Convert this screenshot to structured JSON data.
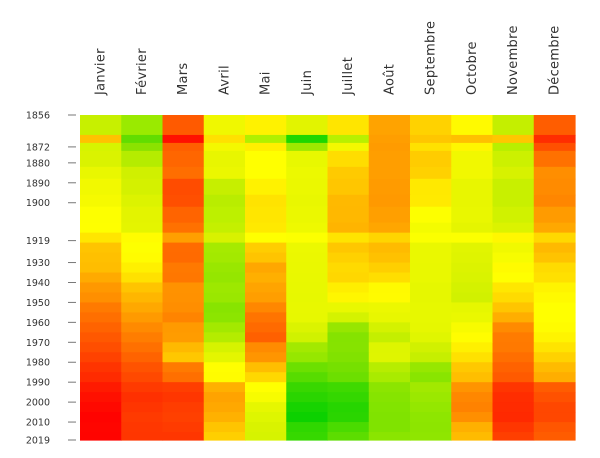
{
  "chart_data": {
    "type": "heatmap",
    "x_categories": [
      "Janvier",
      "Février",
      "Mars",
      "Avril",
      "Mai",
      "Juin",
      "Juillet",
      "Août",
      "Septembre",
      "Octobre",
      "Novembre",
      "Décembre"
    ],
    "y_tick_labels": [
      "1856",
      "1872",
      "1880",
      "1890",
      "1900",
      "1919",
      "1930",
      "1940",
      "1950",
      "1960",
      "1970",
      "1980",
      "1990",
      "2000",
      "2010",
      "2019"
    ],
    "y_range": [
      1856,
      2019
    ],
    "rows": [
      {
        "from": 1856,
        "to": 1866,
        "colors": [
          "#c7f000",
          "#9aea00",
          "#ff5a00",
          "#f0f800",
          "#fff200",
          "#e2f400",
          "#ffe500",
          "#ffa300",
          "#ffd200",
          "#fffa00",
          "#c4ef00",
          "#ff5d00"
        ]
      },
      {
        "from": 1866,
        "to": 1870,
        "colors": [
          "#ffc200",
          "#61dd00",
          "#ff1000",
          "#ffe100",
          "#b0f000",
          "#1ed700",
          "#b8f000",
          "#ff9e00",
          "#ffc600",
          "#ffc000",
          "#ffc700",
          "#ff2d00"
        ]
      },
      {
        "from": 1870,
        "to": 1874,
        "colors": [
          "#d6f400",
          "#8be200",
          "#ff5f00",
          "#f4f800",
          "#ffef00",
          "#9ee800",
          "#f4f800",
          "#ff9b00",
          "#ffe100",
          "#fff600",
          "#b8ef00",
          "#ff5000"
        ]
      },
      {
        "from": 1874,
        "to": 1882,
        "colors": [
          "#daf300",
          "#b5ec00",
          "#ff6600",
          "#e8f600",
          "#ffff00",
          "#e8f800",
          "#ffdd00",
          "#ff9e00",
          "#ffcc00",
          "#f1f800",
          "#ccf100",
          "#ff7100"
        ]
      },
      {
        "from": 1882,
        "to": 1888,
        "colors": [
          "#e9f700",
          "#d0f000",
          "#ff6e00",
          "#ebf700",
          "#ffff00",
          "#ecf900",
          "#ffca00",
          "#ff9e00",
          "#ffd100",
          "#f1f800",
          "#d7f200",
          "#ff8e00"
        ]
      },
      {
        "from": 1888,
        "to": 1896,
        "colors": [
          "#f2f900",
          "#d4f100",
          "#ff4c00",
          "#c6ef00",
          "#fff200",
          "#ebf800",
          "#ffc600",
          "#ff9b00",
          "#ffe900",
          "#e8f600",
          "#c8f000",
          "#ff8b00"
        ]
      },
      {
        "from": 1896,
        "to": 1902,
        "colors": [
          "#f6fa00",
          "#dcf300",
          "#ff4f00",
          "#b9ed00",
          "#ffe300",
          "#e9f700",
          "#ffb900",
          "#ff9900",
          "#ffea00",
          "#e8f600",
          "#c8f000",
          "#ff8600"
        ]
      },
      {
        "from": 1902,
        "to": 1910,
        "colors": [
          "#fdff00",
          "#e3f400",
          "#ff6400",
          "#bdf000",
          "#ffe600",
          "#ebf800",
          "#ffb800",
          "#ff9f00",
          "#fdff00",
          "#e9f700",
          "#d0f200",
          "#ff9b00"
        ]
      },
      {
        "from": 1910,
        "to": 1915,
        "colors": [
          "#feff00",
          "#e4f500",
          "#ff7100",
          "#c4f000",
          "#ffe900",
          "#eef900",
          "#ffb400",
          "#ffa600",
          "#f4fc00",
          "#e5f500",
          "#dbf300",
          "#ffa800"
        ]
      },
      {
        "from": 1915,
        "to": 1920,
        "colors": [
          "#ffe600",
          "#fffc00",
          "#ff9f00",
          "#d8f200",
          "#ffff00",
          "#fcff00",
          "#ffe400",
          "#ffd500",
          "#fbff00",
          "#fcff00",
          "#fff700",
          "#ffd800"
        ]
      },
      {
        "from": 1920,
        "to": 1925,
        "colors": [
          "#ffc400",
          "#feff00",
          "#ff6b00",
          "#a6ea00",
          "#ffcd00",
          "#ecf900",
          "#ffc700",
          "#ffbb00",
          "#eaf800",
          "#e1f500",
          "#f1f900",
          "#ffb900"
        ]
      },
      {
        "from": 1925,
        "to": 1930,
        "colors": [
          "#ffc000",
          "#fffc00",
          "#ff6a00",
          "#a3e900",
          "#ffc400",
          "#ebf800",
          "#ffd100",
          "#ffc100",
          "#eaf800",
          "#dff400",
          "#f7fc00",
          "#ffc300"
        ]
      },
      {
        "from": 1930,
        "to": 1935,
        "colors": [
          "#ffbd00",
          "#fff000",
          "#ff7900",
          "#99e700",
          "#ffa700",
          "#eaf800",
          "#ffda00",
          "#ffcf00",
          "#e9f800",
          "#dcf300",
          "#fffb00",
          "#ffdb00"
        ]
      },
      {
        "from": 1935,
        "to": 1940,
        "colors": [
          "#ffaa00",
          "#ffe100",
          "#ff7700",
          "#95e600",
          "#ffaf00",
          "#e9f800",
          "#ffd700",
          "#ffde00",
          "#e9f800",
          "#d9f300",
          "#ffff00",
          "#ffe000"
        ]
      },
      {
        "from": 1940,
        "to": 1945,
        "colors": [
          "#ff9800",
          "#ffc400",
          "#ff9200",
          "#9de800",
          "#ffa400",
          "#e8f800",
          "#ffee00",
          "#fffa00",
          "#e6f700",
          "#d4f200",
          "#ffe700",
          "#fff400"
        ]
      },
      {
        "from": 1945,
        "to": 1950,
        "colors": [
          "#ff8f00",
          "#ffb600",
          "#ff9100",
          "#9ae700",
          "#ff9e00",
          "#e7f800",
          "#fff600",
          "#fffb00",
          "#e6f700",
          "#d1f100",
          "#ffdb00",
          "#fffa00"
        ]
      },
      {
        "from": 1950,
        "to": 1955,
        "colors": [
          "#ff7a00",
          "#ffa800",
          "#ff8e00",
          "#88e400",
          "#ff8700",
          "#e8f800",
          "#e9f800",
          "#ecf800",
          "#e7f800",
          "#e6f700",
          "#ffc500",
          "#ffff00"
        ]
      },
      {
        "from": 1955,
        "to": 1960,
        "colors": [
          "#ff6f00",
          "#ff9a00",
          "#ff8400",
          "#8ce500",
          "#ff7400",
          "#e7f800",
          "#d4f300",
          "#e8f700",
          "#e7f800",
          "#eaf800",
          "#ffae00",
          "#ffff00"
        ]
      },
      {
        "from": 1960,
        "to": 1965,
        "colors": [
          "#ff6300",
          "#ff8a00",
          "#ff9a00",
          "#a3e900",
          "#ff6a00",
          "#dbf400",
          "#97e600",
          "#d4f200",
          "#e6f700",
          "#f8fb00",
          "#ff8a00",
          "#fffc00"
        ]
      },
      {
        "from": 1965,
        "to": 1970,
        "colors": [
          "#ff5800",
          "#ff7d00",
          "#ff9c00",
          "#b4ec00",
          "#ff6000",
          "#d0f200",
          "#85e300",
          "#c4ef00",
          "#e0f600",
          "#fffd00",
          "#ff7b00",
          "#fff400"
        ]
      },
      {
        "from": 1970,
        "to": 1975,
        "colors": [
          "#ff4e00",
          "#ff7000",
          "#ffb900",
          "#d6f300",
          "#ff8b00",
          "#a3e900",
          "#86e300",
          "#deF500",
          "#d1f100",
          "#fff000",
          "#ff7900",
          "#ffe400"
        ]
      },
      {
        "from": 1975,
        "to": 1980,
        "colors": [
          "#ff4200",
          "#ff6300",
          "#ffc700",
          "#e4f600",
          "#ff9500",
          "#96e700",
          "#81e200",
          "#dff500",
          "#c6ef00",
          "#ffe100",
          "#ff6e00",
          "#ffd200"
        ]
      },
      {
        "from": 1980,
        "to": 1985,
        "colors": [
          "#ff3400",
          "#ff5300",
          "#ff7a00",
          "#fffe00",
          "#ffbe00",
          "#6ce000",
          "#76e000",
          "#b7ed00",
          "#97e700",
          "#ffc800",
          "#ff6200",
          "#ffbb00"
        ]
      },
      {
        "from": 1985,
        "to": 1990,
        "colors": [
          "#ff2b00",
          "#ff4900",
          "#ff6f00",
          "#fffc00",
          "#ffd800",
          "#57dc00",
          "#6cdf00",
          "#a9eb00",
          "#89e500",
          "#ffbe00",
          "#ff5a00",
          "#ffae00"
        ]
      },
      {
        "from": 1990,
        "to": 1995,
        "colors": [
          "#ff1a00",
          "#ff3a00",
          "#ff3e00",
          "#ffb000",
          "#ffff00",
          "#38d700",
          "#3fd900",
          "#8ce500",
          "#a2e900",
          "#ff9400",
          "#ff3500",
          "#ff5c00"
        ]
      },
      {
        "from": 1995,
        "to": 2000,
        "colors": [
          "#ff1000",
          "#ff3000",
          "#ff3600",
          "#ffa300",
          "#f7fc00",
          "#2ad500",
          "#34d700",
          "#86e400",
          "#9be800",
          "#ff8700",
          "#ff2d00",
          "#ff5100"
        ]
      },
      {
        "from": 2000,
        "to": 2005,
        "colors": [
          "#ff0900",
          "#ff3500",
          "#ff3d00",
          "#ffa800",
          "#e6f700",
          "#17d300",
          "#26d500",
          "#82e400",
          "#94e700",
          "#ff8200",
          "#ff2b00",
          "#ff4700"
        ]
      },
      {
        "from": 2005,
        "to": 2010,
        "colors": [
          "#ff0300",
          "#ff3a00",
          "#ff4000",
          "#ffb100",
          "#def600",
          "#0cd100",
          "#2ad500",
          "#80e300",
          "#8ee600",
          "#ff8f00",
          "#ff2900",
          "#ff4700"
        ]
      },
      {
        "from": 2010,
        "to": 2015,
        "colors": [
          "#ff0500",
          "#ff3700",
          "#ff3b00",
          "#ffc400",
          "#d9f300",
          "#2fd700",
          "#4adb00",
          "#80e300",
          "#8de500",
          "#ffb000",
          "#ff3600",
          "#ff5600"
        ]
      },
      {
        "from": 2015,
        "to": 2019,
        "colors": [
          "#ff0400",
          "#ff3600",
          "#ff3600",
          "#ffcf00",
          "#d6f300",
          "#36d800",
          "#5cdd00",
          "#8ae500",
          "#8fe600",
          "#ffbb00",
          "#ff3f00",
          "#ff5c00"
        ]
      }
    ]
  }
}
